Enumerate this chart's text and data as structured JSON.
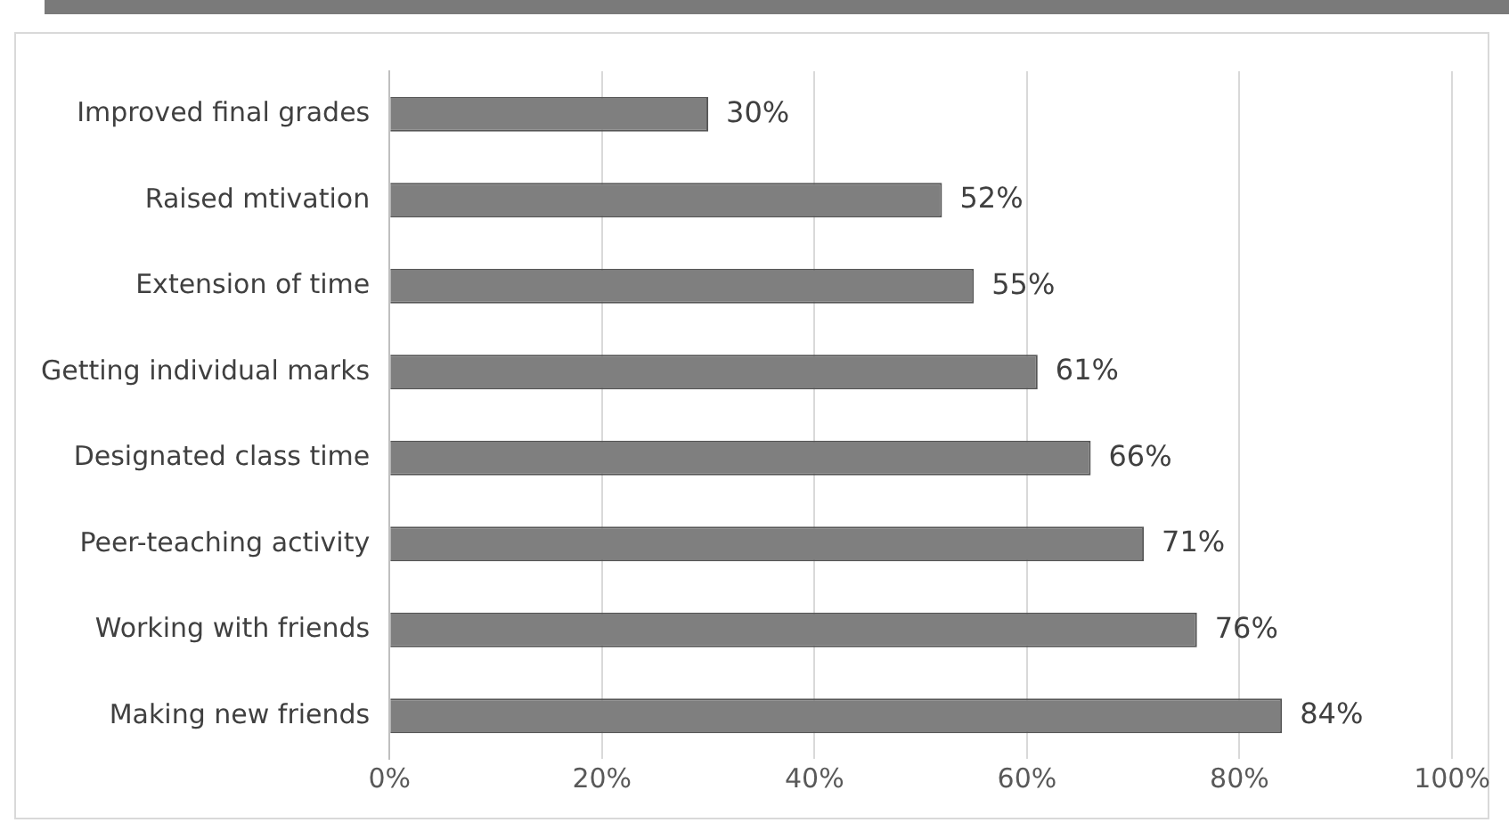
{
  "chart_data": {
    "type": "bar",
    "orientation": "horizontal",
    "categories": [
      "Improved final grades",
      "Raised mtivation",
      "Extension of time",
      "Getting individual marks",
      "Designated class time",
      "Peer-teaching activity",
      "Working with friends",
      "Making new friends"
    ],
    "values": [
      30,
      52,
      55,
      61,
      66,
      71,
      76,
      84
    ],
    "value_labels": [
      "30%",
      "52%",
      "55%",
      "61%",
      "66%",
      "71%",
      "76%",
      "84%"
    ],
    "color": "#7f7f7f",
    "xlim": [
      0,
      100
    ],
    "xticks": [
      {
        "value": 0,
        "label": "0%"
      },
      {
        "value": 20,
        "label": "20%"
      },
      {
        "value": 40,
        "label": "40%"
      },
      {
        "value": 60,
        "label": "60%"
      },
      {
        "value": 80,
        "label": "80%"
      },
      {
        "value": 100,
        "label": "100%"
      }
    ],
    "grid": "x",
    "legend": false
  }
}
